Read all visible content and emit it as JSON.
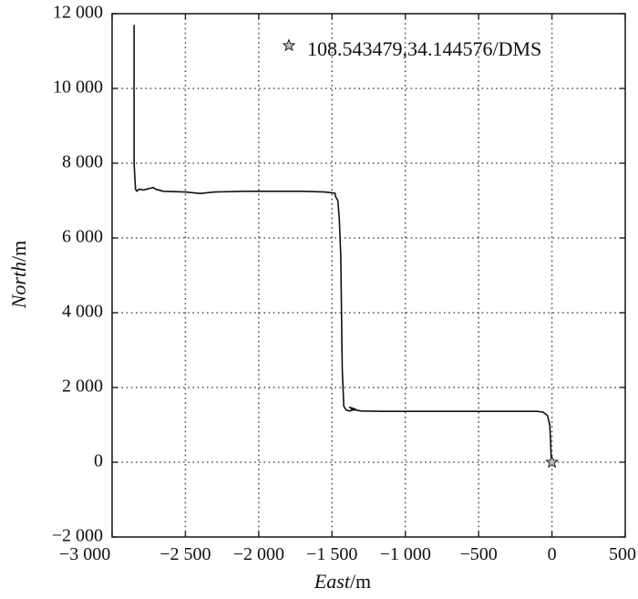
{
  "chart_data": {
    "type": "line",
    "xlabel": {
      "italic": "East",
      "unit": "/m"
    },
    "ylabel": {
      "italic": "North",
      "unit": "/m"
    },
    "xlim": [
      -3000,
      500
    ],
    "ylim": [
      -2000,
      12000
    ],
    "xticks": [
      -3000,
      -2500,
      -2000,
      -1500,
      -1000,
      -500,
      0,
      500
    ],
    "yticks": [
      -2000,
      0,
      2000,
      4000,
      6000,
      8000,
      10000,
      12000
    ],
    "xtick_labels": [
      "−3 000",
      "−2 500",
      "−2 000",
      "−1 500",
      "−1 000",
      "−500",
      "0",
      "500"
    ],
    "ytick_labels": [
      "−2 000",
      "0",
      "2 000",
      "4 000",
      "6 000",
      "8 000",
      "10 000",
      "12 000"
    ],
    "grid": true,
    "legend_position": "top-right",
    "legend": [
      {
        "label": "108.543479,34.144576/DMS",
        "marker": "star"
      }
    ],
    "series": [
      {
        "color": "#111111",
        "x": [
          0,
          -5,
          -10,
          -15,
          -30,
          -60,
          -100,
          -300,
          -600,
          -900,
          -1150,
          -1300,
          -1360,
          -1380,
          -1340,
          -1380,
          -1405,
          -1420,
          -1430,
          -1435,
          -1440,
          -1450,
          -1460,
          -1475,
          -1480,
          -1550,
          -1700,
          -1900,
          -2100,
          -2300,
          -2400,
          -2500,
          -2650,
          -2700,
          -2720,
          -2740,
          -2770,
          -2790,
          -2800,
          -2820,
          -2830,
          -2840,
          -2850,
          -2850
        ],
        "y": [
          0,
          100,
          600,
          1000,
          1250,
          1340,
          1360,
          1360,
          1360,
          1360,
          1360,
          1370,
          1410,
          1470,
          1420,
          1370,
          1400,
          1500,
          2500,
          4000,
          5500,
          6500,
          7000,
          7100,
          7200,
          7230,
          7250,
          7250,
          7250,
          7230,
          7190,
          7230,
          7250,
          7300,
          7350,
          7330,
          7300,
          7280,
          7300,
          7300,
          7250,
          7300,
          8000,
          11700
        ]
      }
    ],
    "markers": [
      {
        "x": 0,
        "y": 0,
        "symbol": "star"
      }
    ]
  }
}
